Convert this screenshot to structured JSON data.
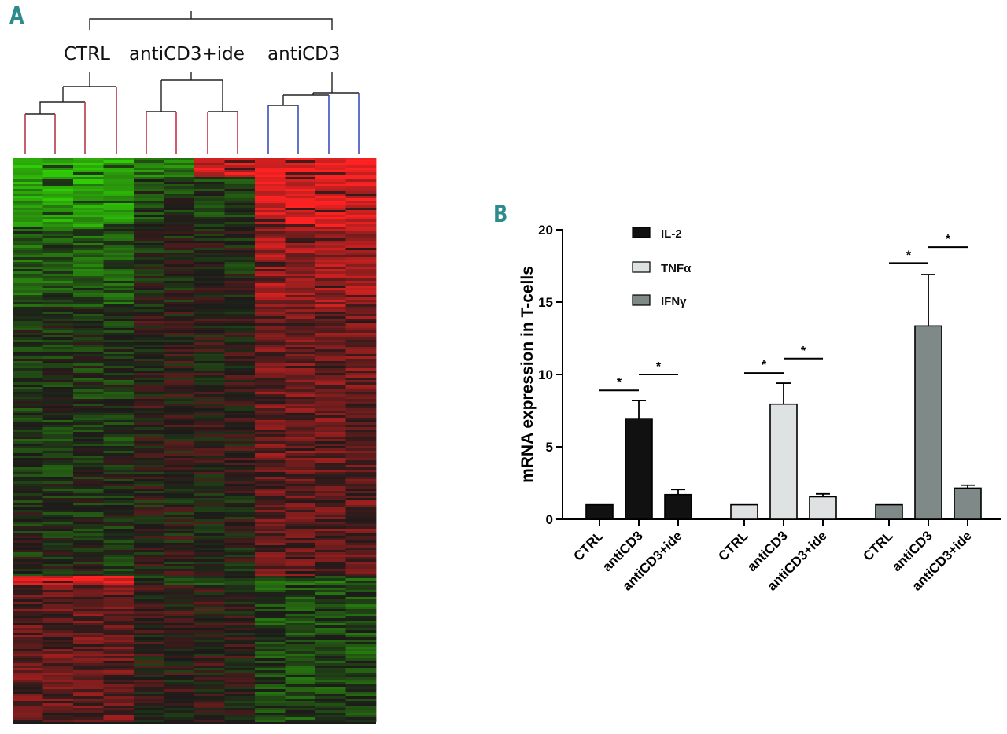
{
  "panelA": {
    "letter": "A",
    "group_labels": [
      "CTRL",
      "antiCD3+ide",
      "antiCD3"
    ],
    "group_colors": [
      "#b23a48",
      "#c8324a",
      "#3a4fb8"
    ],
    "heatmap_colors": {
      "high": "#ff2222",
      "low": "#33cc00",
      "mid": "#1a1a1a"
    }
  },
  "panelB": {
    "letter": "B",
    "chart_data": {
      "type": "bar",
      "ylabel": "mRNA expression in T-cells",
      "ylim": [
        0,
        20
      ],
      "yticks": [
        0,
        5,
        10,
        15,
        20
      ],
      "categories": [
        "CTRL",
        "antiCD3",
        "antiCD3+ide"
      ],
      "series": [
        {
          "name": "IL-2",
          "color": "#111111",
          "values": [
            1.0,
            6.95,
            1.7
          ],
          "errors": [
            0,
            1.25,
            0.35
          ]
        },
        {
          "name": "TNFα",
          "color": "#dfe2e2",
          "values": [
            1.0,
            7.95,
            1.55
          ],
          "errors": [
            0,
            1.45,
            0.2
          ]
        },
        {
          "name": "IFNγ",
          "color": "#7f8a88",
          "values": [
            1.0,
            13.35,
            2.15
          ],
          "errors": [
            0,
            3.55,
            0.2
          ]
        }
      ],
      "significance": [
        {
          "series": 0,
          "from": "CTRL",
          "to": "antiCD3",
          "y": 8.9,
          "label": "*"
        },
        {
          "series": 0,
          "from": "antiCD3",
          "to": "antiCD3+ide",
          "y": 10.0,
          "label": "*"
        },
        {
          "series": 1,
          "from": "CTRL",
          "to": "antiCD3",
          "y": 10.1,
          "label": "*"
        },
        {
          "series": 1,
          "from": "antiCD3",
          "to": "antiCD3+ide",
          "y": 11.1,
          "label": "*"
        },
        {
          "series": 2,
          "from": "CTRL",
          "to": "antiCD3",
          "y": 17.7,
          "label": "*"
        },
        {
          "series": 2,
          "from": "antiCD3",
          "to": "antiCD3+ide",
          "y": 18.8,
          "label": "*"
        }
      ],
      "legend_position": "top-left"
    }
  }
}
